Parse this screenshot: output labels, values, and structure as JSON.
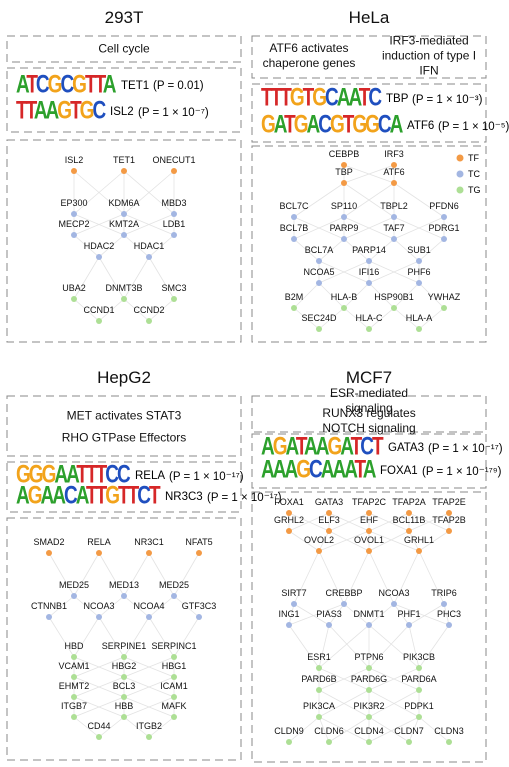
{
  "legend": [
    {
      "name": "TF",
      "color": "#f39a45"
    },
    {
      "name": "TC",
      "color": "#a3b6e2"
    },
    {
      "name": "TG",
      "color": "#addf95"
    }
  ],
  "panels": [
    {
      "title": "293T",
      "pathways": [
        "Cell cycle"
      ],
      "motifs": [
        {
          "logo": "ATCGCGTTA",
          "gene": "TET1",
          "p": "(P = 0.01)"
        },
        {
          "logo": "TTAAGTGC",
          "gene": "ISL2",
          "p": "(P = 1 × 10⁻⁷)"
        }
      ],
      "rows": [
        {
          "type": "TF",
          "labels": [
            "ISL2",
            "TET1",
            "ONECUT1"
          ]
        },
        {
          "type": "TC",
          "labels": [
            "EP300",
            "KDM6A",
            "MBD3"
          ]
        },
        {
          "type": "TC",
          "labels": [
            "MECP2",
            "KMT2A",
            "LDB1"
          ]
        },
        {
          "type": "TC",
          "labels": [
            "HDAC2",
            "HDAC1"
          ]
        },
        {
          "type": "TG",
          "labels": [
            "UBA2",
            "DNMT3B",
            "SMC3"
          ]
        },
        {
          "type": "TG",
          "labels": [
            "CCND1",
            "CCND2"
          ]
        }
      ]
    },
    {
      "title": "HeLa",
      "pathways": [
        "ATF6 activates chaperone genes",
        "IRF3-mediated induction of type I IFN"
      ],
      "motifs": [
        {
          "logo": "TTTGTGCAATC",
          "gene": "TBP",
          "p": "(P = 1 × 10⁻³)"
        },
        {
          "logo": "GATGACGTGGCA",
          "gene": "ATF6",
          "p": "(P = 1 × 10⁻⁵)"
        }
      ],
      "rows": [
        {
          "type": "TF",
          "labels": [
            "CEBPB",
            "IRF3"
          ]
        },
        {
          "type": "TF",
          "labels": [
            "TBP",
            "ATF6"
          ]
        },
        {
          "type": "TC",
          "labels": [
            "BCL7C",
            "SP110",
            "TBPL2",
            "PFDN6"
          ]
        },
        {
          "type": "TC",
          "labels": [
            "BCL7B",
            "PARP9",
            "TAF7",
            "PDRG1"
          ]
        },
        {
          "type": "TC",
          "labels": [
            "BCL7A",
            "PARP14",
            "SUB1"
          ]
        },
        {
          "type": "TC",
          "labels": [
            "NCOA5",
            "IFI16",
            "PHF6"
          ]
        },
        {
          "type": "TG",
          "labels": [
            "B2M",
            "HLA-B",
            "HSP90B1",
            "YWHAZ"
          ]
        },
        {
          "type": "TG",
          "labels": [
            "SEC24D",
            "HLA-C",
            "HLA-A"
          ]
        }
      ]
    },
    {
      "title": "HepG2",
      "pathways": [
        "MET activates STAT3",
        "RHO GTPase Effectors"
      ],
      "motifs": [
        {
          "logo": "GGGAATTTCC",
          "gene": "RELA",
          "p": "(P = 1 × 10⁻¹⁷)"
        },
        {
          "logo": "AGAACATTGTTCT",
          "gene": "NR3C3",
          "p": "(P = 1 × 10⁻¹⁷)"
        }
      ],
      "rows": [
        {
          "type": "TF",
          "labels": [
            "SMAD2",
            "RELA",
            "NR3C1",
            "NFAT5"
          ]
        },
        {
          "type": "TC",
          "labels": [
            "MED25",
            "MED13",
            "MED25"
          ]
        },
        {
          "type": "TC",
          "labels": [
            "CTNNB1",
            "NCOA3",
            "NCOA4",
            "GTF3C3"
          ]
        },
        {
          "type": "TG",
          "labels": [
            "HBD",
            "SERPINE1",
            "SERPINC1"
          ]
        },
        {
          "type": "TG",
          "labels": [
            "VCAM1",
            "HBG2",
            "HBG1"
          ]
        },
        {
          "type": "TG",
          "labels": [
            "EHMT2",
            "BCL3",
            "ICAM1"
          ]
        },
        {
          "type": "TG",
          "labels": [
            "ITGB7",
            "HBB",
            "MAFK"
          ]
        },
        {
          "type": "TG",
          "labels": [
            "CD44",
            "ITGB2"
          ]
        }
      ]
    },
    {
      "title": "MCF7",
      "pathways": [
        "ESR-mediated signaling",
        "RUNX3 regulates NOTCH signaling"
      ],
      "motifs": [
        {
          "logo": "AGATAAGATCT",
          "gene": "GATA3",
          "p": "(P = 1 × 10⁻¹⁷)"
        },
        {
          "logo": "AAAGCAAATA",
          "gene": "FOXA1",
          "p": "(P = 1 × 10⁻¹⁷⁹)"
        }
      ],
      "rows": [
        {
          "type": "TF",
          "labels": [
            "FOXA1",
            "GATA3",
            "TFAP2C",
            "TFAP2A",
            "TFAP2E"
          ]
        },
        {
          "type": "TF",
          "labels": [
            "GRHL2",
            "ELF3",
            "EHF",
            "BCL11B",
            "TFAP2B"
          ]
        },
        {
          "type": "TF",
          "labels": [
            "OVOL2",
            "OVOL1",
            "GRHL1"
          ]
        },
        {
          "type": "TC",
          "labels": [
            "SIRT7",
            "CREBBP",
            "NCOA3",
            "TRIP6"
          ]
        },
        {
          "type": "TC",
          "labels": [
            "ING1",
            "PIAS3",
            "DNMT1",
            "PHF1",
            "PHC3"
          ]
        },
        {
          "type": "TG",
          "labels": [
            "ESR1",
            "PTPN6",
            "PIK3CB"
          ]
        },
        {
          "type": "TG",
          "labels": [
            "PARD6B",
            "PARD6G",
            "PARD6A"
          ]
        },
        {
          "type": "TG",
          "labels": [
            "PIK3CA",
            "PIK3R2",
            "PDPK1"
          ]
        },
        {
          "type": "TG",
          "labels": [
            "CLDN9",
            "CLDN6",
            "CLDN4",
            "CLDN7",
            "CLDN3"
          ]
        }
      ]
    }
  ]
}
